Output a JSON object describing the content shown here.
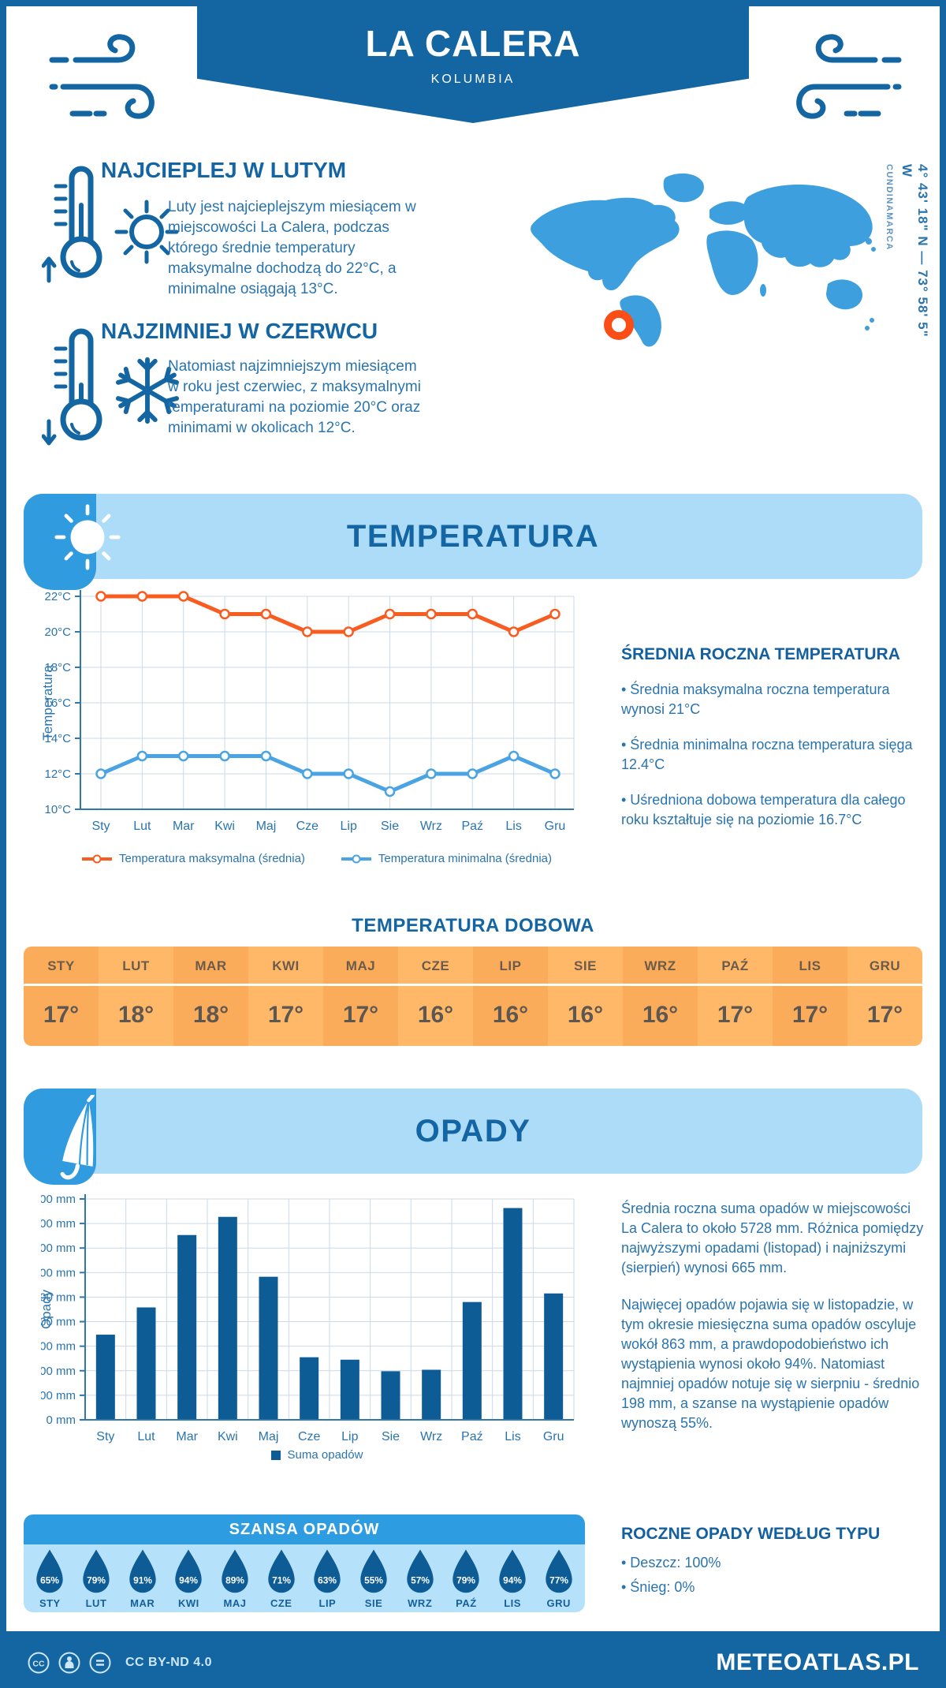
{
  "header": {
    "title": "LA CALERA",
    "subtitle": "KOLUMBIA"
  },
  "location": {
    "coordinates": "4° 43' 18\" N — 73° 58' 5\" W",
    "region": "CUNDINAMARCA"
  },
  "highlights": [
    {
      "heading": "NAJCIEPLEJ W LUTYM",
      "text": "Luty jest najcieplejszym miesiącem w miejscowości La Calera, podczas którego średnie temperatury maksymalne dochodzą do 22°C, a minimalne osiągają 13°C."
    },
    {
      "heading": "NAJZIMNIEJ W CZERWCU",
      "text": "Natomiast najzimniejszym miesiącem w roku jest czerwiec, z maksymalnymi temperaturami na poziomie 20°C oraz minimami w okolicach 12°C."
    }
  ],
  "temperature_section": {
    "title": "TEMPERATURA",
    "annual": {
      "heading": "ŚREDNIA ROCZNA TEMPERATURA",
      "bullets": [
        "• Średnia maksymalna roczna temperatura wynosi 21°C",
        "• Średnia minimalna roczna temperatura sięga 12.4°C",
        "• Uśredniona dobowa temperatura dla całego roku kształtuje się na poziomie 16.7°C"
      ]
    },
    "daily": {
      "title": "TEMPERATURA DOBOWA",
      "months": [
        "STY",
        "LUT",
        "MAR",
        "KWI",
        "MAJ",
        "CZE",
        "LIP",
        "SIE",
        "WRZ",
        "PAŹ",
        "LIS",
        "GRU"
      ],
      "values": [
        "17°",
        "18°",
        "18°",
        "17°",
        "17°",
        "16°",
        "16°",
        "16°",
        "16°",
        "17°",
        "17°",
        "17°"
      ]
    }
  },
  "precipitation_section": {
    "title": "OPADY",
    "paragraphs": [
      "Średnia roczna suma opadów w miejscowości La Calera to około 5728 mm. Różnica pomiędzy najwyższymi opadami (listopad) i najniższymi (sierpień) wynosi 665 mm.",
      "Najwięcej opadów pojawia się w listopadzie, w tym okresie miesięczna suma opadów oscyluje wokół 863 mm, a prawdopodobieństwo ich wystąpienia wynosi około 94%. Natomiast najmniej opadów notuje się w sierpniu - średnio 198 mm, a szanse na wystąpienie opadów wynoszą 55%."
    ],
    "chance": {
      "title": "SZANSA OPADÓW",
      "months": [
        "STY",
        "LUT",
        "MAR",
        "KWI",
        "MAJ",
        "CZE",
        "LIP",
        "SIE",
        "WRZ",
        "PAŹ",
        "LIS",
        "GRU"
      ],
      "values": [
        "65%",
        "79%",
        "91%",
        "94%",
        "89%",
        "71%",
        "63%",
        "55%",
        "57%",
        "79%",
        "94%",
        "77%"
      ]
    },
    "by_type": {
      "heading": "ROCZNE OPADY WEDŁUG TYPU",
      "bullets": [
        "• Deszcz: 100%",
        "• Śnieg: 0%"
      ]
    }
  },
  "chart_data": [
    {
      "type": "line",
      "title": "",
      "categories": [
        "Sty",
        "Lut",
        "Mar",
        "Kwi",
        "Maj",
        "Cze",
        "Lip",
        "Sie",
        "Wrz",
        "Paź",
        "Lis",
        "Gru"
      ],
      "series": [
        {
          "name": "Temperatura maksymalna (średnia)",
          "color": "#f95c1f",
          "values": [
            22,
            22,
            22,
            21,
            21,
            20,
            20,
            21,
            21,
            21,
            20,
            21
          ]
        },
        {
          "name": "Temperatura minimalna (średnia)",
          "color": "#4aa3e2",
          "values": [
            12,
            13,
            13,
            13,
            13,
            12,
            12,
            11,
            12,
            12,
            13,
            12
          ]
        }
      ],
      "xlabel": "",
      "ylabel": "Temperatura",
      "ylim": [
        10,
        22
      ],
      "ytick_step": 2,
      "ytick_suffix": "°C",
      "grid": true,
      "legend_position": "bottom"
    },
    {
      "type": "bar",
      "title": "",
      "categories": [
        "Sty",
        "Lut",
        "Mar",
        "Kwi",
        "Maj",
        "Cze",
        "Lip",
        "Sie",
        "Wrz",
        "Paź",
        "Lis",
        "Gru"
      ],
      "values": [
        347,
        458,
        753,
        827,
        583,
        255,
        245,
        198,
        204,
        480,
        863,
        515
      ],
      "legend": "Suma opadów",
      "bar_color": "#0d5c96",
      "xlabel": "",
      "ylabel": "Opady",
      "ylim": [
        0,
        900
      ],
      "ytick_step": 100,
      "ytick_suffix": " mm",
      "grid": true,
      "legend_position": "bottom"
    }
  ],
  "footer": {
    "license": "CC BY-ND 4.0",
    "site": "METEOATLAS.PL"
  },
  "icons": {
    "header_sides": "wind-icon",
    "warmest": [
      "thermometer-up-icon",
      "sun-icon"
    ],
    "coldest": [
      "thermometer-down-icon",
      "snowflake-icon"
    ],
    "temperature_banner": "sun-icon",
    "precipitation_banner": "umbrella-icon",
    "rain_chance": "raindrop-icon",
    "map_marker": "map-marker-icon",
    "license": [
      "cc-icon",
      "attribution-icon",
      "no-derivatives-icon"
    ]
  },
  "colors": {
    "primary_dark_blue": "#1366a2",
    "bar_blue": "#0d5c96",
    "section_banner_bg": "#addcf9",
    "corner_tab_blue": "#309bdf",
    "map_blue": "#3d9fdd",
    "drops_panel_bg": "#b6e1fb",
    "chance_header_bg": "#2e9ce1",
    "max_line_orange": "#f95c1f",
    "min_line_blue": "#4aa3e2",
    "table_orange": "#fbac5b",
    "table_orange_alt": "#ffb768",
    "marker_orange": "#fa4e16",
    "heading_blue": "#1565a3",
    "body_blue": "#2a74ae",
    "drop": "#0d5c96"
  }
}
